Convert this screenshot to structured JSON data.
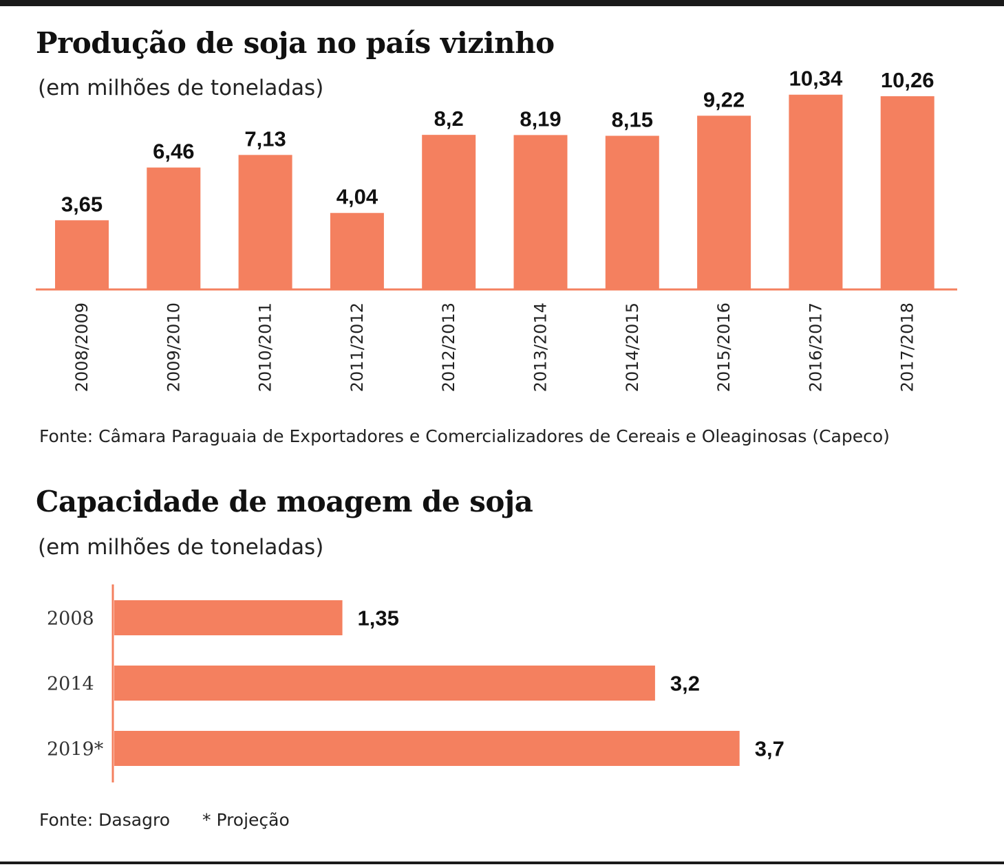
{
  "colors": {
    "bar": "#f4805f",
    "axis": "#f4805f",
    "text": "#111111",
    "rule": "#1a1a1a"
  },
  "chart_data": [
    {
      "type": "bar",
      "orientation": "vertical",
      "title": "Produção de soja no país vizinho",
      "subtitle": "(em milhões de toneladas)",
      "categories": [
        "2008/2009",
        "2009/2010",
        "2010/2011",
        "2011/2012",
        "2012/2013",
        "2013/2014",
        "2014/2015",
        "2015/2016",
        "2016/2017",
        "2017/2018"
      ],
      "values": [
        3.65,
        6.46,
        7.13,
        4.04,
        8.2,
        8.19,
        8.15,
        9.22,
        10.34,
        10.26
      ],
      "value_labels": [
        "3,65",
        "6,46",
        "7,13",
        "4,04",
        "8,2",
        "8,19",
        "8,15",
        "9,22",
        "10,34",
        "10,26"
      ],
      "ylim": [
        0,
        11
      ],
      "grid": false,
      "source": "Fonte: Câmara Paraguaia de Exportadores e Comercializadores de Cereais e Oleaginosas (Capeco)"
    },
    {
      "type": "bar",
      "orientation": "horizontal",
      "title": "Capacidade de moagem de soja",
      "subtitle": "(em milhões de toneladas)",
      "categories": [
        "2008",
        "2014",
        "2019*"
      ],
      "values": [
        1.35,
        3.2,
        3.7
      ],
      "value_labels": [
        "1,35",
        "3,2",
        "3,7"
      ],
      "xlim": [
        0,
        3.7
      ],
      "grid": false,
      "source": "Fonte: Dasagro",
      "note": "* Projeção"
    }
  ]
}
